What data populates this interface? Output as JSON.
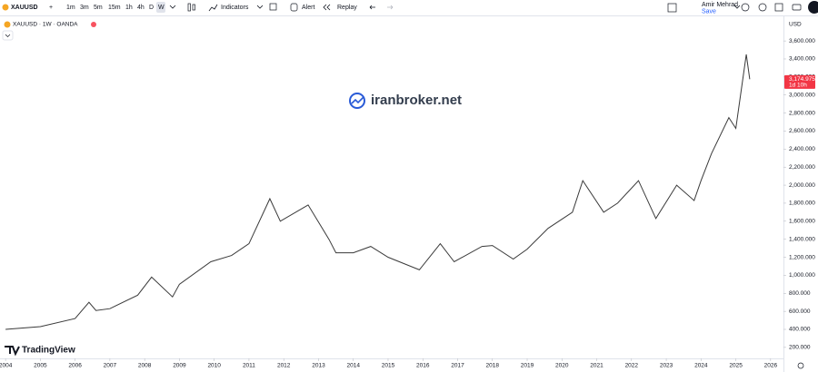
{
  "toolbar": {
    "symbol": "XAUUSD",
    "intervals": [
      "1m",
      "3m",
      "5m",
      "15m",
      "1h",
      "4h",
      "D",
      "W"
    ],
    "indicators": "Indicators",
    "alert": "Alert",
    "replay": "Replay",
    "user": "Amir Mehrad",
    "save": "Save"
  },
  "watermark": "iranbroker.net",
  "logo": "TradingView",
  "chart_data": {
    "type": "line",
    "title": "XAUUSD · 1W · OANDA",
    "currency": "USD",
    "color": "#3a3a3a",
    "x": [
      2004.0,
      2005.0,
      2006.0,
      2006.4,
      2006.6,
      2007.0,
      2007.8,
      2008.2,
      2008.8,
      2009.0,
      2009.9,
      2010.5,
      2011.0,
      2011.6,
      2011.9,
      2012.7,
      2013.3,
      2013.5,
      2014.0,
      2014.5,
      2015.0,
      2015.9,
      2016.5,
      2016.9,
      2017.7,
      2018.0,
      2018.6,
      2019.0,
      2019.6,
      2020.3,
      2020.6,
      2021.2,
      2021.6,
      2022.2,
      2022.7,
      2023.3,
      2023.8,
      2024.0,
      2024.3,
      2024.8,
      2025.0,
      2025.3,
      2025.4
    ],
    "values": [
      400,
      430,
      520,
      700,
      610,
      630,
      780,
      980,
      760,
      900,
      1150,
      1220,
      1350,
      1850,
      1600,
      1780,
      1400,
      1250,
      1250,
      1320,
      1200,
      1060,
      1350,
      1150,
      1320,
      1330,
      1180,
      1290,
      1520,
      1700,
      2050,
      1700,
      1800,
      2050,
      1630,
      2000,
      1830,
      2050,
      2350,
      2750,
      2630,
      3450,
      3175
    ],
    "xlim": [
      2003.84,
      2026.37
    ],
    "xticks": [
      2004,
      2005,
      2006,
      2007,
      2008,
      2009,
      2010,
      2011,
      2012,
      2013,
      2014,
      2015,
      2016,
      2017,
      2018,
      2019,
      2020,
      2021,
      2022,
      2023,
      2024,
      2025,
      2026
    ],
    "ylim": [
      78,
      3873
    ],
    "yticks": [
      {
        "value": 200,
        "label": "200.000"
      },
      {
        "value": 400,
        "label": "400.000"
      },
      {
        "value": 600,
        "label": "600.000"
      },
      {
        "value": 800,
        "label": "800.000"
      },
      {
        "value": 1000,
        "label": "1,000.000"
      },
      {
        "value": 1200,
        "label": "1,200.000"
      },
      {
        "value": 1400,
        "label": "1,400.000"
      },
      {
        "value": 1600,
        "label": "1,600.000"
      },
      {
        "value": 1800,
        "label": "1,800.000"
      },
      {
        "value": 2000,
        "label": "2,000.000"
      },
      {
        "value": 2200,
        "label": "2,200.000"
      },
      {
        "value": 2400,
        "label": "2,400.000"
      },
      {
        "value": 2600,
        "label": "2,600.000"
      },
      {
        "value": 2800,
        "label": "2,800.000"
      },
      {
        "value": 3000,
        "label": "3,000.000"
      },
      {
        "value": 3200,
        "label": "3,200.000"
      },
      {
        "value": 3400,
        "label": "3,400.000"
      },
      {
        "value": 3600,
        "label": "3,600.000"
      }
    ],
    "price_tag": {
      "value": 3174.975,
      "label": "3,174.975",
      "countdown": "1d 10h"
    }
  }
}
